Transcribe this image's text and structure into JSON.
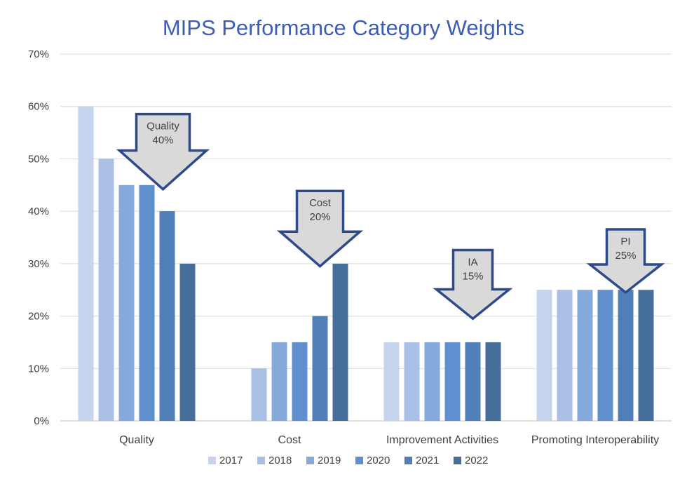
{
  "chart_data": {
    "type": "bar",
    "title": "MIPS Performance Category Weights",
    "xlabel": "",
    "ylabel": "",
    "ylim": [
      0,
      0.7
    ],
    "ytick_values": [
      0,
      0.1,
      0.2,
      0.3,
      0.4,
      0.5,
      0.6,
      0.7
    ],
    "ytick_labels": [
      "0%",
      "10%",
      "20%",
      "30%",
      "40%",
      "50%",
      "60%",
      "70%"
    ],
    "grid": true,
    "legend_position": "bottom",
    "categories": [
      "Quality",
      "Cost",
      "Improvement Activities",
      "Promoting Interoperability"
    ],
    "series": [
      {
        "name": "2017",
        "color": "#c5d3ec",
        "values": [
          0.6,
          0.0,
          0.15,
          0.25
        ]
      },
      {
        "name": "2018",
        "color": "#a9bfe5",
        "values": [
          0.5,
          0.1,
          0.15,
          0.25
        ]
      },
      {
        "name": "2019",
        "color": "#86a9dc",
        "values": [
          0.45,
          0.15,
          0.15,
          0.25
        ]
      },
      {
        "name": "2020",
        "color": "#5f8fce",
        "values": [
          0.45,
          0.15,
          0.15,
          0.25
        ]
      },
      {
        "name": "2021",
        "color": "#4f7eb9",
        "values": [
          0.4,
          0.2,
          0.15,
          0.25
        ]
      },
      {
        "name": "2022",
        "color": "#456e9b",
        "values": [
          0.3,
          0.3,
          0.15,
          0.25
        ]
      }
    ],
    "annotations": [
      {
        "category": "Quality",
        "lines": [
          "Quality",
          "40%"
        ]
      },
      {
        "category": "Cost",
        "lines": [
          "Cost",
          "20%"
        ]
      },
      {
        "category": "Improvement Activities",
        "lines": [
          "IA",
          "15%"
        ]
      },
      {
        "category": "Promoting Interoperability",
        "lines": [
          "PI",
          "25%"
        ]
      }
    ]
  }
}
